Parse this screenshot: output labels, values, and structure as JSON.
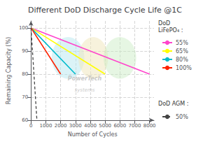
{
  "chart_data": {
    "type": "line",
    "title": "Different DoD Discharge Cycle Life @1C",
    "xlabel": "Number of Cycles",
    "ylabel": "Remaining Capacity (%)",
    "xlim": [
      0,
      8300
    ],
    "ylim": [
      60,
      103
    ],
    "xticks": [
      0,
      1000,
      2000,
      3000,
      4000,
      5000,
      6000,
      7000,
      8000
    ],
    "yticks": [
      60,
      70,
      80,
      90,
      100
    ],
    "grid": true,
    "series": [
      {
        "name": "55%",
        "color": "#ff44cc",
        "line_style": "solid",
        "x": [
          0,
          8000
        ],
        "values": [
          100,
          80
        ]
      },
      {
        "name": "65%",
        "color": "#ffff00",
        "line_style": "solid",
        "x": [
          0,
          5000
        ],
        "values": [
          100,
          80
        ]
      },
      {
        "name": "80%",
        "color": "#00bbcc",
        "line_style": "solid",
        "x": [
          0,
          3000
        ],
        "values": [
          100,
          80
        ]
      },
      {
        "name": "100%",
        "color": "#ff2200",
        "line_style": "solid",
        "x": [
          0,
          2000
        ],
        "values": [
          100,
          80
        ]
      },
      {
        "name": "50%",
        "color": "#444444",
        "line_style": "dashed",
        "x": [
          0,
          400
        ],
        "values": [
          100,
          60
        ]
      }
    ],
    "legend_groups": [
      {
        "title": "DoD\nLiFePO₄ :",
        "names": [
          "55%",
          "65%",
          "80%",
          "100%"
        ]
      },
      {
        "title": "DoD AGM :",
        "names": [
          "50%"
        ]
      }
    ],
    "ellipses": [
      {
        "cx": 2500,
        "cy": 87,
        "w": 2200,
        "h": 18,
        "color": "#b8e8f0"
      },
      {
        "cx": 4200,
        "cy": 87,
        "w": 2000,
        "h": 18,
        "color": "#f0e8c0"
      },
      {
        "cx": 6000,
        "cy": 87,
        "w": 2200,
        "h": 18,
        "color": "#c8ecc0"
      }
    ],
    "annotations": [
      {
        "text": "PowerTech"
      },
      {
        "text": "systems"
      }
    ]
  }
}
